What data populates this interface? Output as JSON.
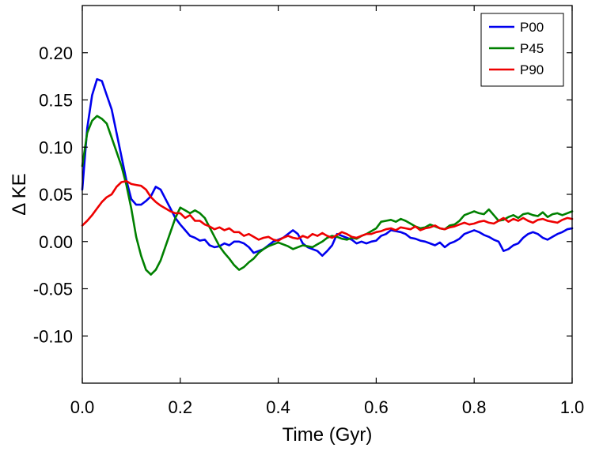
{
  "chart_data": {
    "type": "line",
    "title": "",
    "xlabel": "Time (Gyr)",
    "ylabel": "Δ KE",
    "xlim": [
      0.0,
      1.0
    ],
    "ylim": [
      -0.15,
      0.25
    ],
    "xticks": [
      0.0,
      0.2,
      0.4,
      0.6,
      0.8,
      1.0
    ],
    "xtick_labels": [
      "0.0",
      "0.2",
      "0.4",
      "0.6",
      "0.8",
      "1.0"
    ],
    "yticks": [
      -0.1,
      -0.05,
      0.0,
      0.05,
      0.1,
      0.15,
      0.2
    ],
    "ytick_labels": [
      "-0.10",
      "-0.05",
      "0.00",
      "0.05",
      "0.10",
      "0.15",
      "0.20"
    ],
    "grid": false,
    "legend_position": "top-right",
    "series": [
      {
        "name": "P00",
        "color": "#0000ee",
        "x": [
          0.0,
          0.01,
          0.02,
          0.03,
          0.04,
          0.05,
          0.06,
          0.07,
          0.08,
          0.09,
          0.1,
          0.11,
          0.12,
          0.13,
          0.14,
          0.15,
          0.16,
          0.17,
          0.18,
          0.19,
          0.2,
          0.21,
          0.22,
          0.23,
          0.24,
          0.25,
          0.26,
          0.27,
          0.28,
          0.29,
          0.3,
          0.31,
          0.32,
          0.33,
          0.34,
          0.35,
          0.36,
          0.37,
          0.38,
          0.39,
          0.4,
          0.41,
          0.42,
          0.43,
          0.44,
          0.45,
          0.46,
          0.47,
          0.48,
          0.49,
          0.5,
          0.51,
          0.52,
          0.53,
          0.54,
          0.55,
          0.56,
          0.57,
          0.58,
          0.59,
          0.6,
          0.61,
          0.62,
          0.63,
          0.64,
          0.65,
          0.66,
          0.67,
          0.68,
          0.69,
          0.7,
          0.71,
          0.72,
          0.73,
          0.74,
          0.75,
          0.76,
          0.77,
          0.78,
          0.79,
          0.8,
          0.81,
          0.82,
          0.83,
          0.84,
          0.85,
          0.86,
          0.87,
          0.88,
          0.89,
          0.9,
          0.91,
          0.92,
          0.93,
          0.94,
          0.95,
          0.96,
          0.97,
          0.98,
          0.99,
          1.0
        ],
        "values": [
          0.055,
          0.12,
          0.155,
          0.172,
          0.17,
          0.155,
          0.14,
          0.115,
          0.09,
          0.065,
          0.045,
          0.039,
          0.039,
          0.043,
          0.048,
          0.058,
          0.055,
          0.045,
          0.035,
          0.025,
          0.018,
          0.012,
          0.006,
          0.004,
          0.001,
          0.002,
          -0.004,
          -0.006,
          -0.005,
          -0.002,
          -0.004,
          0.0,
          0.0,
          -0.002,
          -0.006,
          -0.012,
          -0.01,
          -0.008,
          -0.004,
          0.0,
          0.002,
          0.004,
          0.008,
          0.012,
          0.008,
          -0.002,
          -0.006,
          -0.008,
          -0.01,
          -0.015,
          -0.01,
          -0.004,
          0.008,
          0.006,
          0.004,
          0.002,
          -0.002,
          0.0,
          -0.002,
          0.0,
          0.001,
          0.006,
          0.008,
          0.012,
          0.011,
          0.01,
          0.008,
          0.004,
          0.003,
          0.001,
          0.0,
          -0.002,
          -0.004,
          -0.001,
          -0.006,
          -0.002,
          0.0,
          0.003,
          0.008,
          0.01,
          0.012,
          0.01,
          0.007,
          0.005,
          0.002,
          0.0,
          -0.01,
          -0.008,
          -0.004,
          -0.002,
          0.004,
          0.008,
          0.01,
          0.008,
          0.004,
          0.002,
          0.005,
          0.008,
          0.01,
          0.013,
          0.014
        ]
      },
      {
        "name": "P45",
        "color": "#008000",
        "x": [
          0.0,
          0.01,
          0.02,
          0.03,
          0.04,
          0.05,
          0.06,
          0.07,
          0.08,
          0.09,
          0.1,
          0.11,
          0.12,
          0.13,
          0.14,
          0.15,
          0.16,
          0.17,
          0.18,
          0.19,
          0.2,
          0.21,
          0.22,
          0.23,
          0.24,
          0.25,
          0.26,
          0.27,
          0.28,
          0.29,
          0.3,
          0.31,
          0.32,
          0.33,
          0.34,
          0.35,
          0.36,
          0.37,
          0.38,
          0.39,
          0.4,
          0.41,
          0.42,
          0.43,
          0.44,
          0.45,
          0.46,
          0.47,
          0.48,
          0.49,
          0.5,
          0.51,
          0.52,
          0.53,
          0.54,
          0.55,
          0.56,
          0.57,
          0.58,
          0.59,
          0.6,
          0.61,
          0.62,
          0.63,
          0.64,
          0.65,
          0.66,
          0.67,
          0.68,
          0.69,
          0.7,
          0.71,
          0.72,
          0.73,
          0.74,
          0.75,
          0.76,
          0.77,
          0.78,
          0.79,
          0.8,
          0.81,
          0.82,
          0.83,
          0.84,
          0.85,
          0.86,
          0.87,
          0.88,
          0.89,
          0.9,
          0.91,
          0.92,
          0.93,
          0.94,
          0.95,
          0.96,
          0.97,
          0.98,
          0.99,
          1.0
        ],
        "values": [
          0.08,
          0.115,
          0.128,
          0.133,
          0.13,
          0.125,
          0.11,
          0.095,
          0.08,
          0.06,
          0.035,
          0.005,
          -0.015,
          -0.03,
          -0.035,
          -0.03,
          -0.02,
          -0.005,
          0.01,
          0.025,
          0.036,
          0.033,
          0.03,
          0.033,
          0.03,
          0.025,
          0.015,
          0.005,
          -0.005,
          -0.012,
          -0.018,
          -0.025,
          -0.03,
          -0.027,
          -0.022,
          -0.018,
          -0.012,
          -0.008,
          -0.005,
          -0.003,
          -0.001,
          -0.003,
          -0.005,
          -0.008,
          -0.006,
          -0.004,
          -0.005,
          -0.006,
          -0.003,
          0.0,
          0.004,
          0.006,
          0.005,
          0.003,
          0.002,
          0.004,
          0.003,
          0.006,
          0.008,
          0.011,
          0.014,
          0.021,
          0.022,
          0.023,
          0.021,
          0.024,
          0.022,
          0.019,
          0.016,
          0.014,
          0.015,
          0.018,
          0.016,
          0.014,
          0.013,
          0.017,
          0.018,
          0.022,
          0.028,
          0.03,
          0.032,
          0.03,
          0.029,
          0.034,
          0.028,
          0.022,
          0.023,
          0.026,
          0.028,
          0.025,
          0.029,
          0.03,
          0.028,
          0.027,
          0.031,
          0.026,
          0.029,
          0.03,
          0.028,
          0.03,
          0.032
        ]
      },
      {
        "name": "P90",
        "color": "#ee0000",
        "x": [
          0.0,
          0.01,
          0.02,
          0.03,
          0.04,
          0.05,
          0.06,
          0.07,
          0.08,
          0.09,
          0.1,
          0.11,
          0.12,
          0.13,
          0.14,
          0.15,
          0.16,
          0.17,
          0.18,
          0.19,
          0.2,
          0.21,
          0.22,
          0.23,
          0.24,
          0.25,
          0.26,
          0.27,
          0.28,
          0.29,
          0.3,
          0.31,
          0.32,
          0.33,
          0.34,
          0.35,
          0.36,
          0.37,
          0.38,
          0.39,
          0.4,
          0.41,
          0.42,
          0.43,
          0.44,
          0.45,
          0.46,
          0.47,
          0.48,
          0.49,
          0.5,
          0.51,
          0.52,
          0.53,
          0.54,
          0.55,
          0.56,
          0.57,
          0.58,
          0.59,
          0.6,
          0.61,
          0.62,
          0.63,
          0.64,
          0.65,
          0.66,
          0.67,
          0.68,
          0.69,
          0.7,
          0.71,
          0.72,
          0.73,
          0.74,
          0.75,
          0.76,
          0.77,
          0.78,
          0.79,
          0.8,
          0.81,
          0.82,
          0.83,
          0.84,
          0.85,
          0.86,
          0.87,
          0.88,
          0.89,
          0.9,
          0.91,
          0.92,
          0.93,
          0.94,
          0.95,
          0.96,
          0.97,
          0.98,
          0.99,
          1.0
        ],
        "values": [
          0.017,
          0.022,
          0.028,
          0.035,
          0.042,
          0.047,
          0.05,
          0.058,
          0.063,
          0.064,
          0.061,
          0.06,
          0.059,
          0.055,
          0.047,
          0.042,
          0.038,
          0.035,
          0.032,
          0.03,
          0.03,
          0.025,
          0.028,
          0.022,
          0.022,
          0.018,
          0.016,
          0.013,
          0.015,
          0.012,
          0.014,
          0.01,
          0.01,
          0.006,
          0.008,
          0.005,
          0.002,
          0.004,
          0.005,
          0.002,
          0.001,
          0.004,
          0.006,
          0.004,
          0.003,
          0.006,
          0.004,
          0.008,
          0.006,
          0.009,
          0.006,
          0.004,
          0.007,
          0.01,
          0.008,
          0.005,
          0.004,
          0.006,
          0.008,
          0.008,
          0.01,
          0.011,
          0.013,
          0.014,
          0.012,
          0.015,
          0.014,
          0.013,
          0.016,
          0.012,
          0.014,
          0.015,
          0.017,
          0.014,
          0.013,
          0.015,
          0.016,
          0.018,
          0.02,
          0.018,
          0.019,
          0.021,
          0.022,
          0.02,
          0.019,
          0.022,
          0.025,
          0.021,
          0.024,
          0.022,
          0.025,
          0.022,
          0.02,
          0.023,
          0.024,
          0.022,
          0.021,
          0.02,
          0.023,
          0.025,
          0.024
        ]
      }
    ]
  }
}
